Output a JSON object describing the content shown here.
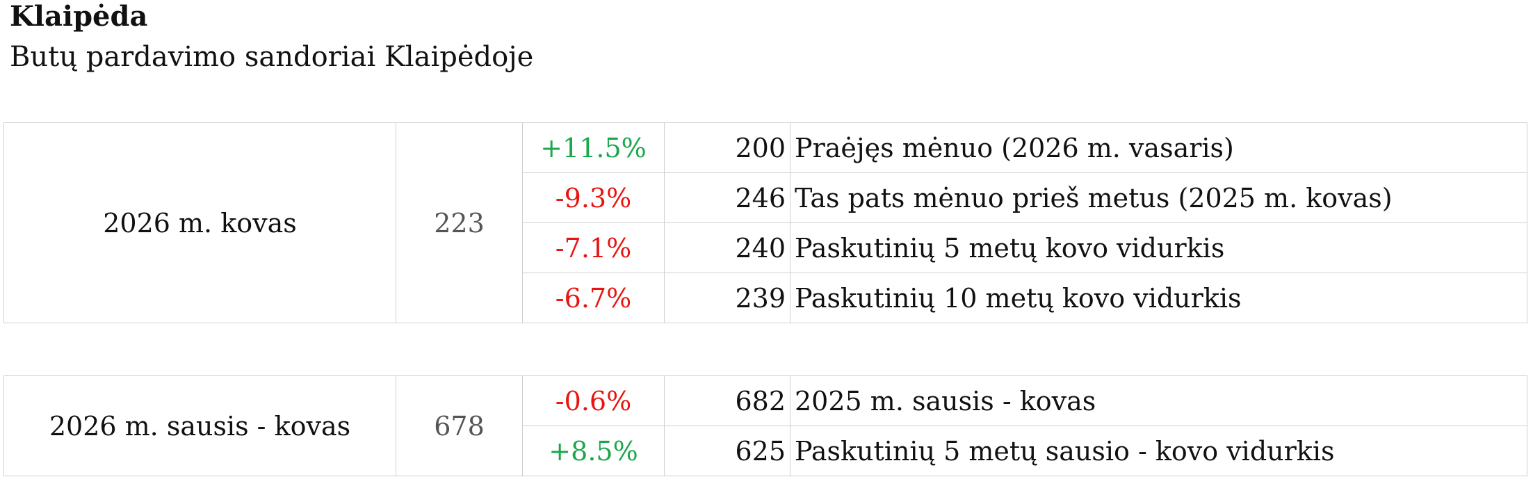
{
  "header": {
    "title": "Klaipėda",
    "subtitle": "Butų pardavimo sandoriai Klaipėdoje"
  },
  "tables": [
    {
      "period": "2026 m. kovas",
      "value": 223,
      "rows": [
        {
          "change": "+11.5%",
          "base": 200,
          "label": "Praėjęs mėnuo (2026 m. vasaris)"
        },
        {
          "change": "-9.3%",
          "base": 246,
          "label": "Tas pats mėnuo prieš metus (2025 m. kovas)"
        },
        {
          "change": "-7.1%",
          "base": 240,
          "label": "Paskutinių 5 metų kovo vidurkis"
        },
        {
          "change": "-6.7%",
          "base": 239,
          "label": "Paskutinių 10 metų kovo vidurkis"
        }
      ]
    },
    {
      "period": "2026 m. sausis - kovas",
      "value": 678,
      "rows": [
        {
          "change": "-0.6%",
          "base": 682,
          "label": "2025 m. sausis - kovas"
        },
        {
          "change": "+8.5%",
          "base": 625,
          "label": "Paskutinių 5 metų sausio - kovo vidurkis"
        }
      ]
    }
  ]
}
